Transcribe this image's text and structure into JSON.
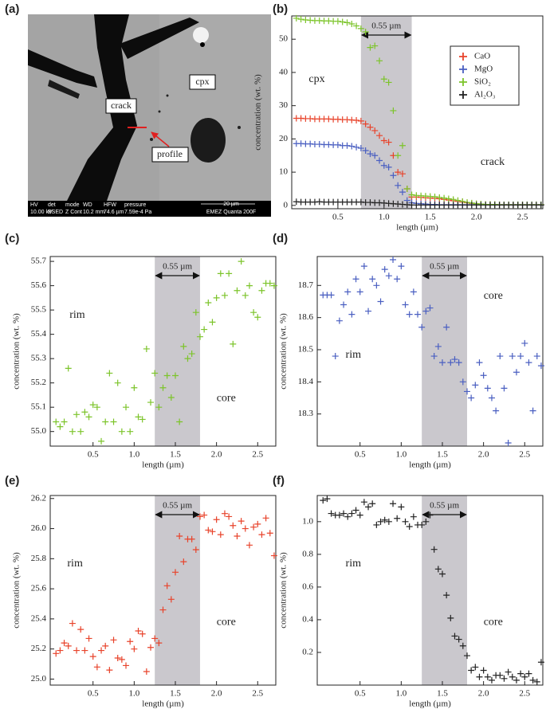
{
  "image_panel": {
    "label": "(a)",
    "labels": [
      "crack",
      "cpx",
      "profile"
    ],
    "info": {
      "headers": [
        "HV",
        "det",
        "mode",
        "WD",
        "HFW",
        "pressure"
      ],
      "values": [
        "10.00 kV",
        "BSED",
        "Z Cont",
        "10.2 mm",
        "74.6 µm",
        "7.59e-4 Pa"
      ],
      "scale": "20 µm",
      "instrument": "EMEZ Quanta 200F"
    }
  },
  "chart_data": [
    {
      "type": "scatter",
      "label": "(b)",
      "xlabel": "length (µm)",
      "ylabel": "concentration (wt. %)",
      "annotations": [
        "cpx",
        "crack"
      ],
      "band": [
        0.75,
        1.3
      ],
      "band_label": "0.55 µm",
      "legend": "upper right",
      "xlim": [
        0.0,
        2.72
      ],
      "xticks": [
        0.5,
        {
          "value": 1,
          "label": "1.0"
        },
        1.5,
        {
          "value": 2,
          "label": "2.0"
        },
        2.5
      ],
      "ylim": [
        -1,
        57
      ],
      "yticks": [
        0,
        10,
        20,
        30,
        40,
        50
      ],
      "x": [
        0.05,
        0.1,
        0.15,
        0.2,
        0.25,
        0.3,
        0.35,
        0.4,
        0.45,
        0.5,
        0.55,
        0.6,
        0.65,
        0.7,
        0.75,
        0.8,
        0.85,
        0.9,
        0.95,
        1,
        1.05,
        1.1,
        1.15,
        1.2,
        1.25,
        1.3,
        1.35,
        1.4,
        1.45,
        1.5,
        1.55,
        1.6,
        1.65,
        1.7,
        1.75,
        1.8,
        1.85,
        1.9,
        1.95,
        2,
        2.05,
        2.1,
        2.15,
        2.2,
        2.25,
        2.3,
        2.35,
        2.4,
        2.45,
        2.5,
        2.55,
        2.6,
        2.65,
        2.7
      ],
      "series": [
        {
          "name": "CaO",
          "color": "#e8432b",
          "values": [
            26.2,
            26.2,
            26.1,
            26.1,
            26.0,
            26.0,
            26.0,
            26.0,
            25.9,
            25.9,
            25.8,
            25.8,
            25.7,
            25.6,
            25.4,
            24.5,
            23.5,
            22.5,
            21.0,
            19.5,
            19.0,
            15.0,
            10.0,
            9.5,
            5.0,
            2.5,
            2.5,
            2.4,
            2.3,
            2.2,
            2.1,
            2.0,
            1.8,
            1.6,
            1.4,
            1.2,
            1.0,
            0.8,
            0.6,
            0.5,
            0.4,
            0.3,
            0.3,
            0.3,
            0.2,
            0.2,
            0.2,
            0.2,
            0.2,
            0.2,
            0.2,
            0.2,
            0.2,
            0.2
          ]
        },
        {
          "name": "MgO",
          "color": "#4a5fc1",
          "values": [
            18.6,
            18.6,
            18.5,
            18.5,
            18.4,
            18.4,
            18.3,
            18.3,
            18.2,
            18.2,
            18.0,
            18.0,
            17.8,
            17.5,
            17.2,
            16.5,
            15.5,
            15.0,
            13.5,
            12.0,
            11.5,
            9.0,
            6.0,
            4.0,
            1.5,
            0.8,
            0.6,
            0.5,
            0.4,
            0.3,
            0.3,
            0.2,
            0.2,
            0.2,
            0.2,
            0.2,
            0.2,
            0.2,
            0.2,
            0.2,
            0.2,
            0.2,
            0.2,
            0.2,
            0.2,
            0.2,
            0.2,
            0.2,
            0.2,
            0.2,
            0.2,
            0.2,
            0.2,
            0.2
          ]
        },
        {
          "name": "SiO₂",
          "color": "#7cc42a",
          "values": [
            56.3,
            56.0,
            55.8,
            55.7,
            55.6,
            55.6,
            55.5,
            55.5,
            55.4,
            55.4,
            55.2,
            55.0,
            54.6,
            54.0,
            53.2,
            52.2,
            47.5,
            48.0,
            43.5,
            38.0,
            37.0,
            28.5,
            15.0,
            18.0,
            5.0,
            3.2,
            3.0,
            2.9,
            2.8,
            2.7,
            2.6,
            2.4,
            2.2,
            2.0,
            1.8,
            1.5,
            1.2,
            0.9,
            0.7,
            0.5,
            0.4,
            0.3,
            0.3,
            0.3,
            0.2,
            0.2,
            0.2,
            0.2,
            0.2,
            0.2,
            0.2,
            0.2,
            0.2,
            0.2
          ]
        },
        {
          "name": "Al₂O₃",
          "color": "#222222",
          "values": [
            1.1,
            1.0,
            1.0,
            1.0,
            1.0,
            1.1,
            1.0,
            1.0,
            1.0,
            1.0,
            1.0,
            1.0,
            1.0,
            1.0,
            1.0,
            0.9,
            0.9,
            0.8,
            0.8,
            0.7,
            0.6,
            0.5,
            0.4,
            0.3,
            0.2,
            0.1,
            0.1,
            0.1,
            0.1,
            0.1,
            0.1,
            0.1,
            0.1,
            0.1,
            0.1,
            0.1,
            0.1,
            0.1,
            0.1,
            0.1,
            0.1,
            0.1,
            0.1,
            0.1,
            0.1,
            0.1,
            0.1,
            0.1,
            0.1,
            0.1,
            0.1,
            0.1,
            0.1,
            0.1
          ]
        }
      ]
    },
    {
      "type": "scatter",
      "label": "(c)",
      "xlabel": "length (µm)",
      "ylabel": "concentration (wt. %)",
      "annotations": [
        "rim",
        "core"
      ],
      "band": [
        1.25,
        1.8
      ],
      "band_label": "0.55 µm",
      "color": "#7cc42a",
      "xlim": [
        -0.02,
        2.72
      ],
      "xticks": [
        0.5,
        {
          "value": 1,
          "label": "1.0"
        },
        1.5,
        {
          "value": 2,
          "label": "2.0"
        },
        2.5
      ],
      "ylim": [
        54.94,
        55.72
      ],
      "yticks": [
        {
          "value": 55,
          "label": "55.0"
        },
        55.1,
        55.2,
        55.3,
        55.4,
        55.5,
        55.6,
        55.7
      ],
      "x": [
        0.05,
        0.1,
        0.15,
        0.2,
        0.25,
        0.3,
        0.35,
        0.4,
        0.45,
        0.5,
        0.55,
        0.6,
        0.65,
        0.7,
        0.75,
        0.8,
        0.85,
        0.9,
        0.95,
        1,
        1.05,
        1.1,
        1.15,
        1.2,
        1.25,
        1.3,
        1.35,
        1.4,
        1.45,
        1.5,
        1.55,
        1.6,
        1.65,
        1.7,
        1.75,
        1.8,
        1.85,
        1.9,
        1.95,
        2,
        2.05,
        2.1,
        2.15,
        2.2,
        2.25,
        2.3,
        2.35,
        2.4,
        2.45,
        2.5,
        2.55,
        2.6,
        2.65,
        2.7
      ],
      "values": [
        55.04,
        55.02,
        55.04,
        55.26,
        55.0,
        55.07,
        55.0,
        55.08,
        55.06,
        55.11,
        55.1,
        54.96,
        55.04,
        55.24,
        55.04,
        55.2,
        55.0,
        55.1,
        55.0,
        55.18,
        55.06,
        55.05,
        55.34,
        55.12,
        55.24,
        55.1,
        55.18,
        55.23,
        55.14,
        55.23,
        55.04,
        55.35,
        55.3,
        55.32,
        55.49,
        55.39,
        55.42,
        55.53,
        55.45,
        55.55,
        55.65,
        55.56,
        55.65,
        55.36,
        55.58,
        55.7,
        55.56,
        55.6,
        55.49,
        55.47,
        55.58,
        55.61,
        55.61,
        55.6
      ]
    },
    {
      "type": "scatter",
      "label": "(d)",
      "xlabel": "length (µm)",
      "ylabel": "concentration (wt. %)",
      "annotations": [
        "rim",
        "core"
      ],
      "band": [
        1.25,
        1.8
      ],
      "band_label": "0.55 µm",
      "color": "#4a5fc1",
      "xlim": [
        -0.02,
        2.72
      ],
      "xticks": [
        0.5,
        {
          "value": 1,
          "label": "1.0"
        },
        1.5,
        {
          "value": 2,
          "label": "2.0"
        },
        2.5
      ],
      "ylim": [
        18.2,
        18.79
      ],
      "yticks": [
        18.3,
        18.4,
        18.5,
        18.6,
        18.7
      ],
      "x": [
        0.05,
        0.1,
        0.15,
        0.2,
        0.25,
        0.3,
        0.35,
        0.4,
        0.45,
        0.5,
        0.55,
        0.6,
        0.65,
        0.7,
        0.75,
        0.8,
        0.85,
        0.9,
        0.95,
        1,
        1.05,
        1.1,
        1.15,
        1.2,
        1.25,
        1.3,
        1.35,
        1.4,
        1.45,
        1.5,
        1.55,
        1.6,
        1.65,
        1.7,
        1.75,
        1.8,
        1.85,
        1.9,
        1.95,
        2,
        2.05,
        2.1,
        2.15,
        2.2,
        2.25,
        2.3,
        2.35,
        2.4,
        2.45,
        2.5,
        2.55,
        2.6,
        2.65,
        2.7
      ],
      "values": [
        18.67,
        18.67,
        18.67,
        18.48,
        18.59,
        18.64,
        18.68,
        18.61,
        18.72,
        18.68,
        18.76,
        18.62,
        18.72,
        18.7,
        18.65,
        18.75,
        18.73,
        18.78,
        18.72,
        18.76,
        18.64,
        18.61,
        18.68,
        18.61,
        18.57,
        18.62,
        18.63,
        18.48,
        18.51,
        18.46,
        18.57,
        18.46,
        18.47,
        18.46,
        18.4,
        18.37,
        18.35,
        18.39,
        18.46,
        18.42,
        18.38,
        18.35,
        18.31,
        18.48,
        18.38,
        18.21,
        18.48,
        18.43,
        18.48,
        18.52,
        18.46,
        18.31,
        18.48,
        18.45
      ]
    },
    {
      "type": "scatter",
      "label": "(e)",
      "xlabel": "length (µm)",
      "ylabel": "concentration (wt. %)",
      "annotations": [
        "rim",
        "core"
      ],
      "band": [
        1.25,
        1.8
      ],
      "band_label": "0.55 µm",
      "color": "#e8432b",
      "xlim": [
        -0.02,
        2.72
      ],
      "xticks": [
        0.5,
        {
          "value": 1,
          "label": "1.0"
        },
        1.5,
        {
          "value": 2,
          "label": "2.0"
        },
        2.5
      ],
      "ylim": [
        24.96,
        26.22
      ],
      "yticks": [
        {
          "value": 25,
          "label": "25.0"
        },
        25.2,
        25.4,
        25.6,
        25.8,
        {
          "value": 26,
          "label": "26.0"
        },
        26.2
      ],
      "x": [
        0.05,
        0.1,
        0.15,
        0.2,
        0.25,
        0.3,
        0.35,
        0.4,
        0.45,
        0.5,
        0.55,
        0.6,
        0.65,
        0.7,
        0.75,
        0.8,
        0.85,
        0.9,
        0.95,
        1,
        1.05,
        1.1,
        1.15,
        1.2,
        1.25,
        1.3,
        1.35,
        1.4,
        1.45,
        1.5,
        1.55,
        1.6,
        1.65,
        1.7,
        1.75,
        1.8,
        1.85,
        1.9,
        1.95,
        2,
        2.05,
        2.1,
        2.15,
        2.2,
        2.25,
        2.3,
        2.35,
        2.4,
        2.45,
        2.5,
        2.55,
        2.6,
        2.65,
        2.7
      ],
      "values": [
        25.17,
        25.19,
        25.24,
        25.22,
        25.37,
        25.19,
        25.33,
        25.19,
        25.27,
        25.15,
        25.08,
        25.19,
        25.22,
        25.06,
        25.26,
        25.14,
        25.13,
        25.09,
        25.25,
        25.2,
        25.32,
        25.3,
        25.05,
        25.21,
        25.27,
        25.24,
        25.46,
        25.62,
        25.53,
        25.71,
        25.95,
        25.78,
        25.93,
        25.93,
        25.86,
        26.08,
        26.09,
        25.99,
        25.98,
        26.06,
        25.96,
        26.1,
        26.08,
        26.02,
        25.95,
        26.05,
        26.0,
        25.89,
        26.01,
        26.03,
        25.96,
        26.07,
        25.97,
        25.82
      ]
    },
    {
      "type": "scatter",
      "label": "(f)",
      "xlabel": "length (µm)",
      "ylabel": "concentration (wt. %)",
      "annotations": [
        "rim",
        "core"
      ],
      "band": [
        1.25,
        1.8
      ],
      "band_label": "0.55 µm",
      "color": "#222222",
      "xlim": [
        -0.02,
        2.72
      ],
      "xticks": [
        0.5,
        {
          "value": 1,
          "label": "1.0"
        },
        1.5,
        {
          "value": 2,
          "label": "2.0"
        },
        2.5
      ],
      "ylim": [
        0.0,
        1.16
      ],
      "yticks": [
        0.2,
        0.4,
        0.6,
        0.8,
        {
          "value": 1,
          "label": "1.0"
        }
      ],
      "x": [
        0.05,
        0.1,
        0.15,
        0.2,
        0.25,
        0.3,
        0.35,
        0.4,
        0.45,
        0.5,
        0.55,
        0.6,
        0.65,
        0.7,
        0.75,
        0.8,
        0.85,
        0.9,
        0.95,
        1,
        1.05,
        1.1,
        1.15,
        1.2,
        1.25,
        1.3,
        1.35,
        1.4,
        1.45,
        1.5,
        1.55,
        1.6,
        1.65,
        1.7,
        1.75,
        1.8,
        1.85,
        1.9,
        1.95,
        2,
        2.05,
        2.1,
        2.15,
        2.2,
        2.25,
        2.3,
        2.35,
        2.4,
        2.45,
        2.5,
        2.55,
        2.6,
        2.65,
        2.7
      ],
      "values": [
        1.13,
        1.14,
        1.05,
        1.04,
        1.04,
        1.05,
        1.03,
        1.05,
        1.07,
        1.04,
        1.12,
        1.09,
        1.11,
        0.98,
        1.0,
        1.01,
        1.0,
        1.11,
        1.02,
        1.09,
        1.0,
        0.97,
        1.03,
        0.98,
        0.98,
        1.0,
        1.04,
        0.83,
        0.71,
        0.68,
        0.55,
        0.41,
        0.3,
        0.28,
        0.24,
        0.18,
        0.09,
        0.11,
        0.05,
        0.09,
        0.05,
        0.03,
        0.06,
        0.06,
        0.04,
        0.08,
        0.05,
        0.03,
        0.07,
        0.05,
        0.07,
        0.03,
        0.02,
        0.14
      ]
    }
  ]
}
